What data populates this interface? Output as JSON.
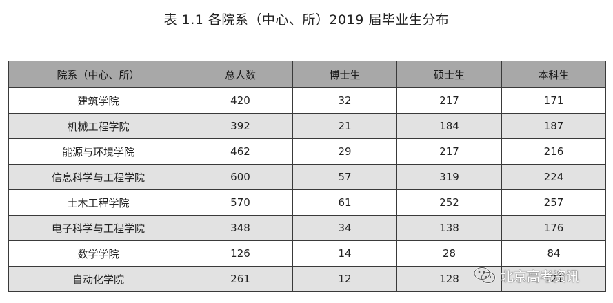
{
  "title": "表 1.1  各院系（中心、所）2019 届毕业生分布",
  "table": {
    "headers": [
      "院系（中心、所）",
      "总人数",
      "博士生",
      "硕士生",
      "本科生"
    ],
    "rows": [
      [
        "建筑学院",
        "420",
        "32",
        "217",
        "171"
      ],
      [
        "机械工程学院",
        "392",
        "21",
        "184",
        "187"
      ],
      [
        "能源与环境学院",
        "462",
        "29",
        "217",
        "216"
      ],
      [
        "信息科学与工程学院",
        "600",
        "57",
        "319",
        "224"
      ],
      [
        "土木工程学院",
        "570",
        "61",
        "252",
        "257"
      ],
      [
        "电子科学与工程学院",
        "348",
        "34",
        "138",
        "176"
      ],
      [
        "数学学院",
        "126",
        "14",
        "28",
        "84"
      ],
      [
        "自动化学院",
        "261",
        "12",
        "128",
        "121"
      ]
    ]
  },
  "watermark": {
    "icon": "wechat-icon",
    "text": "北京高考资讯"
  }
}
